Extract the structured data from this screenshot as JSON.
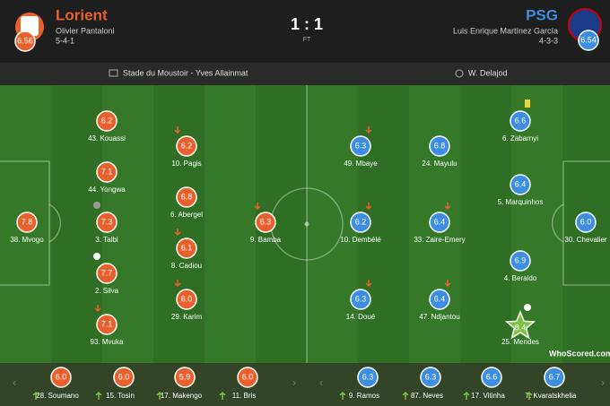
{
  "header": {
    "home": {
      "name": "Lorient",
      "manager": "Olivier Pantaloni",
      "formation": "5-4-1",
      "rating": "6.56"
    },
    "score": "1 : 1",
    "status": "FT",
    "away": {
      "name": "PSG",
      "manager": "Luis Enrique Martínez García",
      "formation": "4-3-3",
      "rating": "6.54"
    }
  },
  "info": {
    "venue": "Stade du Moustoir - Yves Allainmat",
    "referee": "W. Delajod"
  },
  "home_players": [
    {
      "label": "38. Mvogo",
      "rating": "7.8"
    },
    {
      "label": "43. Kouassi",
      "rating": "6.2"
    },
    {
      "label": "44. Yongwa",
      "rating": "7.1"
    },
    {
      "label": "3. Talbi",
      "rating": "7.3"
    },
    {
      "label": "2. Silva",
      "rating": "7.7"
    },
    {
      "label": "93. Mvuka",
      "rating": "7.1"
    },
    {
      "label": "10. Pagis",
      "rating": "6.2"
    },
    {
      "label": "6. Abergel",
      "rating": "6.8"
    },
    {
      "label": "8. Cadiou",
      "rating": "6.1"
    },
    {
      "label": "29. Karim",
      "rating": "6.0"
    },
    {
      "label": "9. Bamba",
      "rating": "6.3"
    }
  ],
  "away_players": [
    {
      "label": "30. Chevalier",
      "rating": "6.0"
    },
    {
      "label": "6. Zabarnyi",
      "rating": "6.6"
    },
    {
      "label": "5. Marquinhos",
      "rating": "6.4"
    },
    {
      "label": "4. Beraldo",
      "rating": "6.9"
    },
    {
      "label": "25. Mendes",
      "rating": "8.4"
    },
    {
      "label": "49. Mbaye",
      "rating": "6.3"
    },
    {
      "label": "10. Dembélé",
      "rating": "6.2"
    },
    {
      "label": "14. Doué",
      "rating": "6.3"
    },
    {
      "label": "24. Mayulu",
      "rating": "6.8"
    },
    {
      "label": "33. Zaire-Emery",
      "rating": "6.4"
    },
    {
      "label": "47. Ndjantou",
      "rating": "6.4"
    }
  ],
  "home_subs": [
    {
      "label": "28. Soumano",
      "rating": "6.0"
    },
    {
      "label": "15. Tosin",
      "rating": "6.0"
    },
    {
      "label": "17. Makengo",
      "rating": "5.9"
    },
    {
      "label": "11. Bris",
      "rating": "6.0"
    }
  ],
  "away_subs": [
    {
      "label": "9. Ramos",
      "rating": "6.3"
    },
    {
      "label": "87. Neves",
      "rating": "6.3"
    },
    {
      "label": "17. Vitinha",
      "rating": "6.6"
    },
    {
      "label": "7. Kvaratskhelia",
      "rating": "6.7"
    }
  ],
  "watermark": "WhoScored.com"
}
